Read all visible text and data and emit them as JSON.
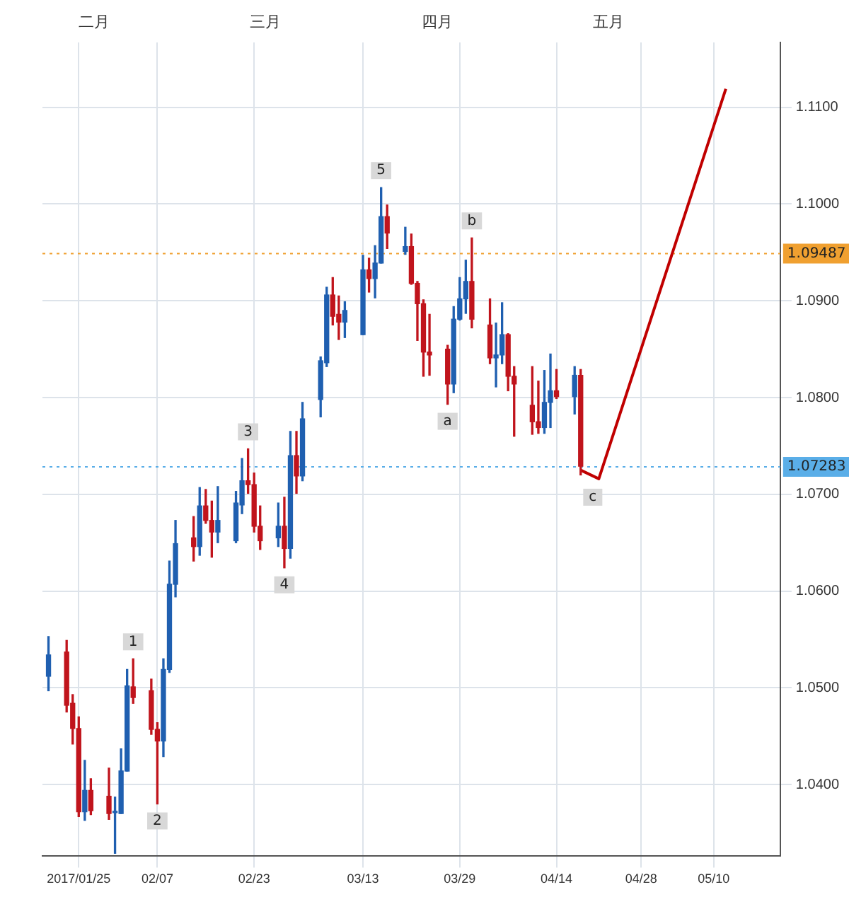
{
  "chart_data": {
    "type": "candlestick",
    "x": [
      "2017-01-20",
      "2017-01-23",
      "2017-01-24",
      "2017-01-25",
      "2017-01-26",
      "2017-01-27",
      "2017-01-30",
      "2017-01-31",
      "2017-02-01",
      "2017-02-02",
      "2017-02-03",
      "2017-02-06",
      "2017-02-07",
      "2017-02-08",
      "2017-02-09",
      "2017-02-10",
      "2017-02-13",
      "2017-02-14",
      "2017-02-15",
      "2017-02-16",
      "2017-02-17",
      "2017-02-20",
      "2017-02-21",
      "2017-02-22",
      "2017-02-23",
      "2017-02-24",
      "2017-02-27",
      "2017-02-28",
      "2017-03-01",
      "2017-03-02",
      "2017-03-03",
      "2017-03-06",
      "2017-03-07",
      "2017-03-08",
      "2017-03-09",
      "2017-03-10",
      "2017-03-13",
      "2017-03-14",
      "2017-03-15",
      "2017-03-16",
      "2017-03-17",
      "2017-03-20",
      "2017-03-21",
      "2017-03-22",
      "2017-03-23",
      "2017-03-24",
      "2017-03-27",
      "2017-03-28",
      "2017-03-29",
      "2017-03-30",
      "2017-03-31",
      "2017-04-03",
      "2017-04-04",
      "2017-04-05",
      "2017-04-06",
      "2017-04-07",
      "2017-04-10",
      "2017-04-11",
      "2017-04-12",
      "2017-04-13",
      "2017-04-14",
      "2017-04-17",
      "2017-04-18"
    ],
    "ohlc": [
      [
        1.0512,
        1.0553,
        1.0497,
        1.0534
      ],
      [
        1.0537,
        1.0549,
        1.0475,
        1.0482
      ],
      [
        1.0484,
        1.0493,
        1.0442,
        1.0458
      ],
      [
        1.0458,
        1.047,
        1.0367,
        1.0372
      ],
      [
        1.0372,
        1.0425,
        1.0363,
        1.0394
      ],
      [
        1.0394,
        1.0406,
        1.0369,
        1.0373
      ],
      [
        1.0388,
        1.0417,
        1.0364,
        1.037
      ],
      [
        1.0371,
        1.0387,
        1.0329,
        1.0372
      ],
      [
        1.037,
        1.0437,
        1.037,
        1.0414
      ],
      [
        1.0414,
        1.0519,
        1.0414,
        1.0502
      ],
      [
        1.0501,
        1.053,
        1.0484,
        1.049
      ],
      [
        1.0497,
        1.0509,
        1.0452,
        1.0457
      ],
      [
        1.0457,
        1.0464,
        1.038,
        1.0445
      ],
      [
        1.0445,
        1.053,
        1.0429,
        1.0519
      ],
      [
        1.0519,
        1.0631,
        1.0516,
        1.0607
      ],
      [
        1.0607,
        1.0673,
        1.0594,
        1.0649
      ],
      [
        1.0655,
        1.0677,
        1.0631,
        1.0646
      ],
      [
        1.0646,
        1.0707,
        1.0637,
        1.0688
      ],
      [
        1.0688,
        1.0705,
        1.067,
        1.0673
      ],
      [
        1.0673,
        1.0693,
        1.0635,
        1.0661
      ],
      [
        1.0661,
        1.0708,
        1.065,
        1.0673
      ],
      [
        1.0652,
        1.0703,
        1.065,
        1.0691
      ],
      [
        1.0689,
        1.0737,
        1.068,
        1.0714
      ],
      [
        1.0714,
        1.0747,
        1.0701,
        1.071
      ],
      [
        1.071,
        1.0722,
        1.0661,
        1.0667
      ],
      [
        1.0667,
        1.0688,
        1.0643,
        1.0652
      ],
      [
        1.0655,
        1.0691,
        1.0646,
        1.0667
      ],
      [
        1.0667,
        1.0697,
        1.0624,
        1.0644
      ],
      [
        1.0644,
        1.0765,
        1.0634,
        1.074
      ],
      [
        1.074,
        1.0765,
        1.0701,
        1.0719
      ],
      [
        1.0719,
        1.0795,
        1.0714,
        1.0778
      ],
      [
        1.0798,
        1.0842,
        1.078,
        1.0838
      ],
      [
        1.0836,
        1.0914,
        1.0832,
        1.0906
      ],
      [
        1.0906,
        1.0924,
        1.0875,
        1.0884
      ],
      [
        1.0886,
        1.0905,
        1.086,
        1.0878
      ],
      [
        1.0878,
        1.0899,
        1.0862,
        1.089
      ],
      [
        1.0865,
        1.0947,
        1.0865,
        1.0932
      ],
      [
        1.0932,
        1.0944,
        1.0909,
        1.0923
      ],
      [
        1.0923,
        1.0957,
        1.0903,
        1.0939
      ],
      [
        1.0939,
        1.1017,
        1.0939,
        1.0987
      ],
      [
        1.0987,
        1.0999,
        1.0954,
        1.097
      ],
      [
        1.0951,
        1.0976,
        1.0948,
        1.0956
      ],
      [
        1.0956,
        1.0969,
        1.0917,
        1.0918
      ],
      [
        1.0918,
        1.092,
        1.0859,
        1.0897
      ],
      [
        1.0897,
        1.0901,
        1.0822,
        1.0847
      ],
      [
        1.0847,
        1.0886,
        1.0823,
        1.0844
      ],
      [
        1.085,
        1.0854,
        1.0793,
        1.0814
      ],
      [
        1.0814,
        1.0894,
        1.0805,
        1.0881
      ],
      [
        1.0881,
        1.0924,
        1.088,
        1.0902
      ],
      [
        1.0902,
        1.0942,
        1.0887,
        1.092
      ],
      [
        1.092,
        1.0965,
        1.0872,
        1.0881
      ],
      [
        1.0875,
        1.0902,
        1.0835,
        1.0841
      ],
      [
        1.0841,
        1.0877,
        1.0811,
        1.0844
      ],
      [
        1.0844,
        1.0898,
        1.0835,
        1.0865
      ],
      [
        1.0865,
        1.0866,
        1.0807,
        1.0822
      ],
      [
        1.0822,
        1.0832,
        1.076,
        1.0814
      ],
      [
        1.0792,
        1.0832,
        1.0762,
        1.0775
      ],
      [
        1.0775,
        1.0817,
        1.0763,
        1.0769
      ],
      [
        1.0769,
        1.0828,
        1.0763,
        1.0795
      ],
      [
        1.0795,
        1.0845,
        1.0769,
        1.0807
      ],
      [
        1.0807,
        1.0829,
        1.0799,
        1.0801
      ],
      [
        1.0801,
        1.0832,
        1.0783,
        1.0823
      ],
      [
        1.0823,
        1.0829,
        1.072,
        1.0729
      ]
    ],
    "series": [
      {
        "type": "line",
        "color": "#c00000",
        "x": [
          "2017-04-18",
          "2017-04-21",
          "2017-05-12"
        ],
        "values": [
          1.0725,
          1.0716,
          1.1119
        ]
      }
    ],
    "xlim": [
      "2017-01-19",
      "2017-05-21"
    ],
    "xticks": [
      {
        "value": "2017-01-25",
        "label": "2017/01/25"
      },
      {
        "value": "2017-02-07",
        "label": "02/07"
      },
      {
        "value": "2017-02-23",
        "label": "02/23"
      },
      {
        "value": "2017-03-13",
        "label": "03/13"
      },
      {
        "value": "2017-03-29",
        "label": "03/29"
      },
      {
        "value": "2017-04-14",
        "label": "04/14"
      },
      {
        "value": "2017-04-28",
        "label": "04/28"
      },
      {
        "value": "2017-05-10",
        "label": "05/10"
      }
    ],
    "ylim": [
      1.0326,
      1.1167
    ],
    "yticks": [
      {
        "value": 1.04,
        "label": "1.0400"
      },
      {
        "value": 1.05,
        "label": "1.0500"
      },
      {
        "value": 1.06,
        "label": "1.0600"
      },
      {
        "value": 1.07,
        "label": "1.0700"
      },
      {
        "value": 1.08,
        "label": "1.0800"
      },
      {
        "value": 1.09,
        "label": "1.0900"
      },
      {
        "value": 1.1,
        "label": "1.1000"
      },
      {
        "value": 1.11,
        "label": "1.1100"
      }
    ],
    "ref_lines": [
      {
        "axis": "y",
        "value": 1.09487,
        "label": "1.09487",
        "color": "#f0a030",
        "line_style": "dotted"
      },
      {
        "axis": "y",
        "value": 1.07283,
        "label": "1.07283",
        "color": "#5aaee8",
        "line_style": "dotted"
      }
    ],
    "annotations": [
      "二月",
      "三月",
      "四月",
      "五月",
      {
        "text": "1",
        "x": "2017-02-03",
        "y": 1.053
      },
      {
        "text": "2",
        "x": "2017-02-07",
        "y": 1.038
      },
      {
        "text": "3",
        "x": "2017-02-22",
        "y": 1.0747
      },
      {
        "text": "4",
        "x": "2017-02-28",
        "y": 1.0624
      },
      {
        "text": "5",
        "x": "2017-03-16",
        "y": 1.1017
      },
      {
        "text": "a",
        "x": "2017-03-27",
        "y": 1.0793
      },
      {
        "text": "b",
        "x": "2017-03-31",
        "y": 1.0965
      },
      {
        "text": "c",
        "x": "2017-04-20",
        "y": 1.0697
      }
    ],
    "grid": true,
    "legend": false
  }
}
